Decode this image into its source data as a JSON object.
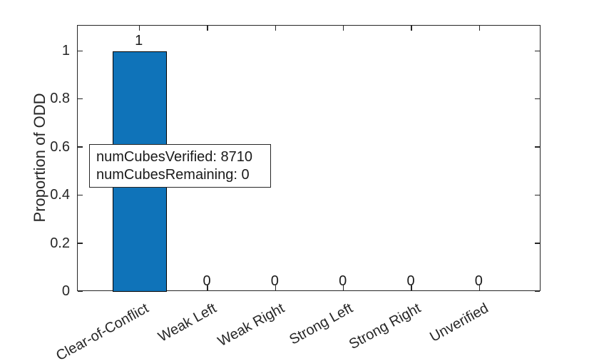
{
  "figure": {
    "background": "#ffffff",
    "axis_color": "#262626",
    "text_color": "#262626"
  },
  "chart_data": {
    "type": "bar",
    "title": "",
    "xlabel": "",
    "ylabel": "Proportion of ODD",
    "categories": [
      "Clear-of-Conflict",
      "Weak Left",
      "Weak Right",
      "Strong Left",
      "Strong Right",
      "Unverified"
    ],
    "values": [
      1,
      0,
      0,
      0,
      0,
      0
    ],
    "bar_labels": [
      "1",
      "0",
      "0",
      "0",
      "0",
      "0"
    ],
    "yticks": [
      0,
      0.2,
      0.4,
      0.6,
      0.8,
      1
    ],
    "ytick_labels": [
      "0",
      "0.2",
      "0.4",
      "0.6",
      "0.8",
      "1"
    ],
    "ylim": [
      0,
      1.107
    ],
    "grid": false,
    "legend": null,
    "box": true,
    "bar_color": "#0F73B9",
    "bar_edge_color": "#000000",
    "x_label_rotation_deg": 29
  },
  "annotation": {
    "lines": [
      "numCubesVerified: 8710",
      "numCubesRemaining: 0"
    ]
  }
}
